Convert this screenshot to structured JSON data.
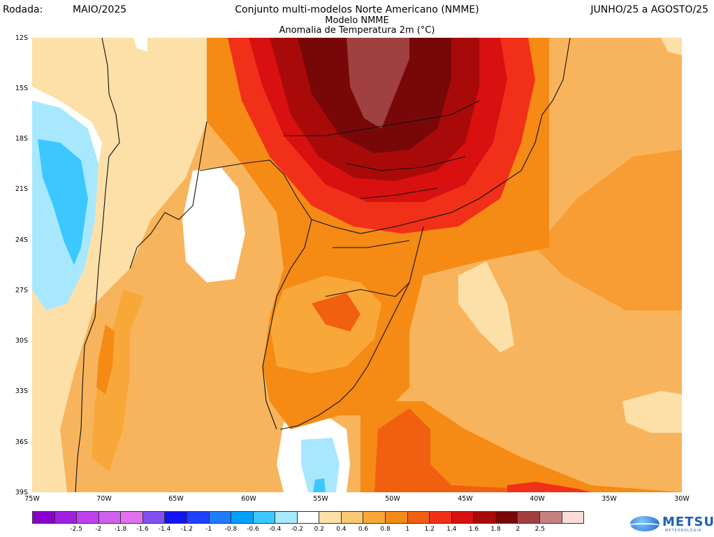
{
  "header": {
    "run_label": "Rodada:",
    "run_value": "MAIO/2025",
    "title": "Conjunto multi-modelos Norte Americano (NMME)",
    "model": "Modelo NMME",
    "variable": "Anomalia de Temperatura 2m (°C)",
    "period": "JUNHO/25 a AGOSTO/25"
  },
  "axes": {
    "lat_labels": [
      "12S",
      "15S",
      "18S",
      "21S",
      "24S",
      "27S",
      "30S",
      "33S",
      "36S",
      "39S"
    ],
    "lon_labels": [
      "75W",
      "70W",
      "65W",
      "60W",
      "55W",
      "50W",
      "45W",
      "40W",
      "35W",
      "30W"
    ]
  },
  "colorbar": {
    "colors": [
      "#8b00cc",
      "#a020e0",
      "#c040f0",
      "#d060f0",
      "#e070f0",
      "#8050f0",
      "#1414f0",
      "#2040ff",
      "#1e7cff",
      "#00a0ff",
      "#3cc8ff",
      "#a8e8ff",
      "#ffffff",
      "#fde0a8",
      "#fbc873",
      "#f8a838",
      "#f58a14",
      "#f06010",
      "#f03018",
      "#d81010",
      "#a80a0a",
      "#780808",
      "#a04040",
      "#c88080",
      "#fadcd8"
    ],
    "labels": [
      "-2.5",
      "-2",
      "-1.8",
      "-1.6",
      "-1.4",
      "-1.2",
      "-1",
      "-0.8",
      "-0.6",
      "-0.4",
      "-0.2",
      "0.2",
      "0.4",
      "0.6",
      "0.8",
      "1",
      "1.2",
      "1.4",
      "1.6",
      "1.8",
      "2",
      "2.5"
    ]
  },
  "logo": {
    "name": "METSUL",
    "tagline": "METEOROLOGIA"
  }
}
